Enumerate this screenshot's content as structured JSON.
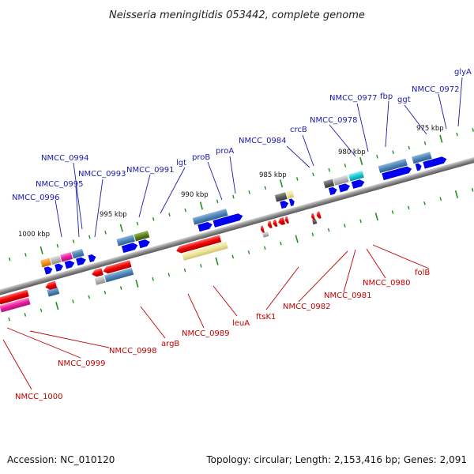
{
  "title": "Neisseria meningitidis 053442, complete genome",
  "footer": {
    "accession": "Accession: NC_010120",
    "topology": "Topology: circular; Length: 2,153,416 bp; Genes: 2,091"
  },
  "colors": {
    "blue_gene": "#0000ee",
    "red_gene": "#ee0000",
    "top_label": "#1a1aa8",
    "bottom_label": "#c00000",
    "tick": "#1f8f1f",
    "backbone": "#8a8a8a",
    "steel_blue": "#4f86b8",
    "magenta": "#ee1ca0",
    "cyan": "#17c9cf",
    "olive": "#5e7f1c",
    "orange": "#f59420",
    "khaki": "#ece59c",
    "gray": "#b7b7b7",
    "dark_gray": "#5d5d5d"
  },
  "kbp_labels": [
    "1000 kbp",
    "995 kbp",
    "990 kbp",
    "985 kbp",
    "980 kbp",
    "975 kbp"
  ],
  "top_labels": [
    "NMCC_0996",
    "NMCC_0995",
    "NMCC_0994",
    "NMCC_0993",
    "NMCC_0991",
    "lgt",
    "proB",
    "proA",
    "NMCC_0984",
    "crcB",
    "NMCC_0978",
    "NMCC_0977",
    "fbp",
    "ggt",
    "NMCC_0972",
    "glyA"
  ],
  "bottom_labels": [
    "NMCC_1000",
    "NMCC_0999",
    "NMCC_0998",
    "argB",
    "NMCC_0989",
    "leuA",
    "ftsK1",
    "NMCC_0982",
    "NMCC_0981",
    "NMCC_0980",
    "folB"
  ]
}
